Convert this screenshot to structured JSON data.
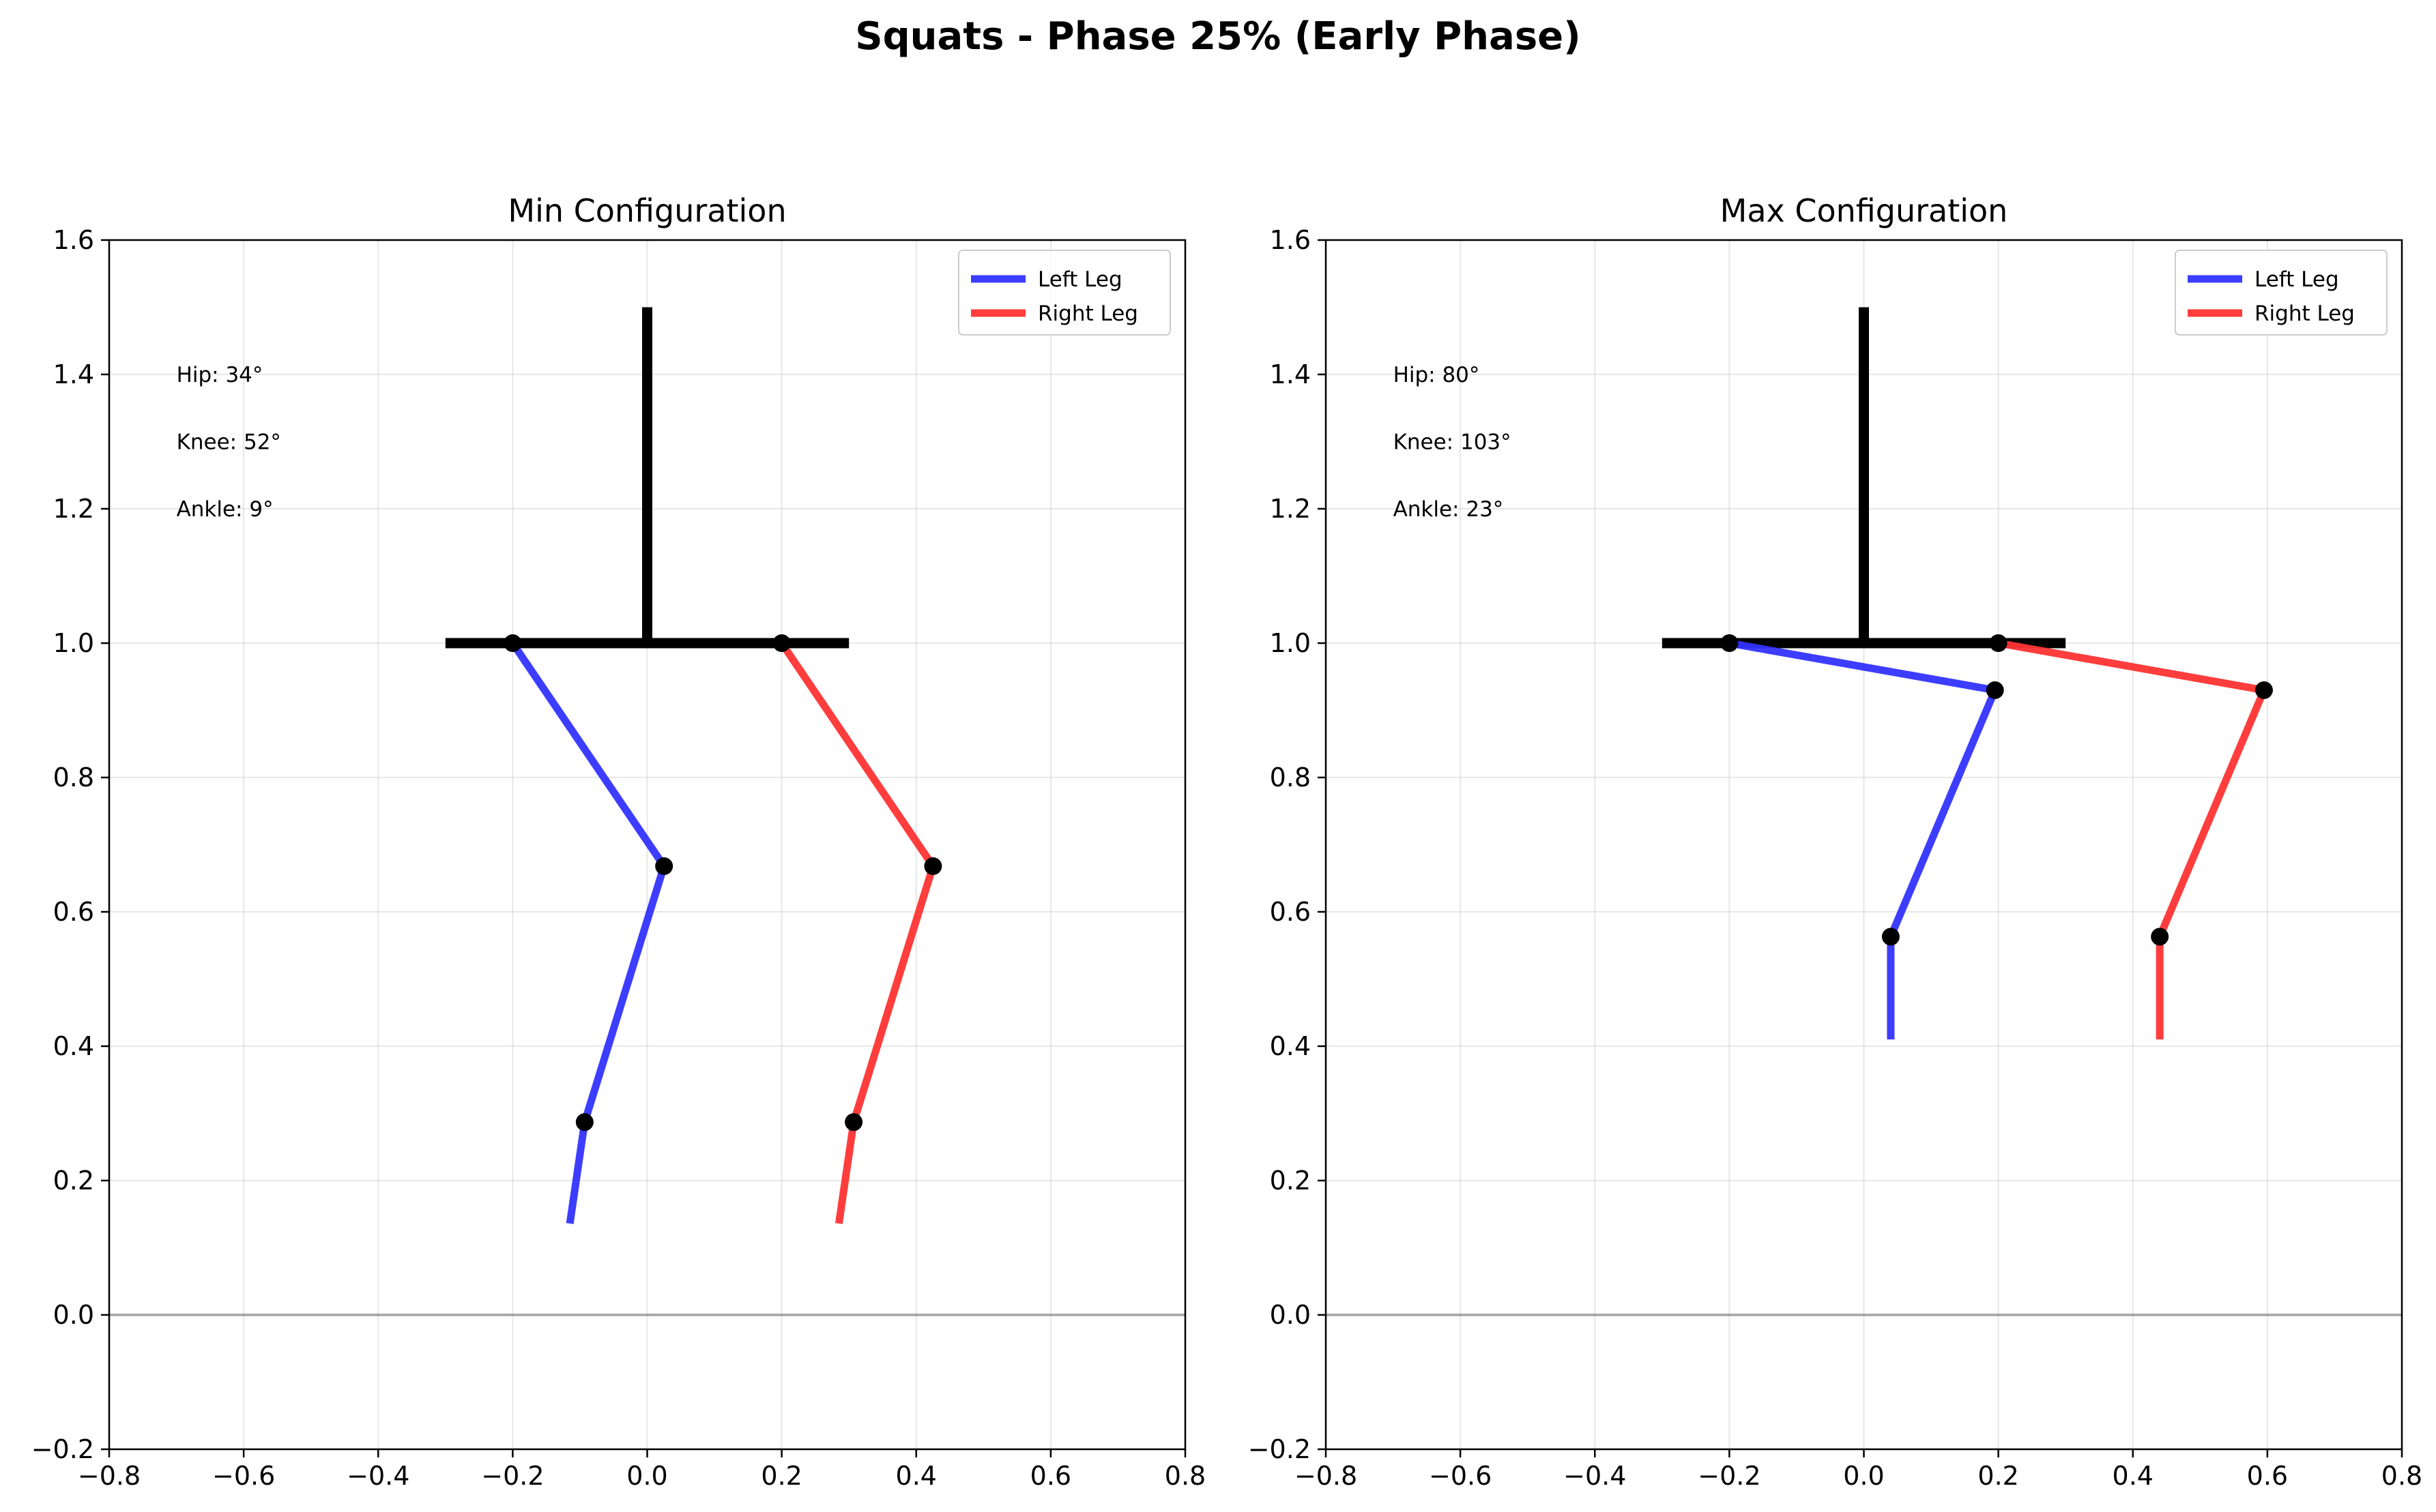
{
  "figure": {
    "title": "Squats - Phase 25% (Early Phase)"
  },
  "chart_data": [
    {
      "type": "line",
      "title": "Min Configuration",
      "xlabel": "",
      "ylabel": "",
      "xlim": [
        -0.8,
        0.8
      ],
      "ylim": [
        -0.2,
        1.6
      ],
      "xticks": [
        -0.8,
        -0.6,
        -0.4,
        -0.2,
        0.0,
        0.2,
        0.4,
        0.6,
        0.8
      ],
      "yticks": [
        -0.2,
        0.0,
        0.2,
        0.4,
        0.6,
        0.8,
        1.0,
        1.2,
        1.4,
        1.6
      ],
      "xtick_labels": [
        "−0.8",
        "−0.6",
        "−0.4",
        "−0.2",
        "0.0",
        "0.2",
        "0.4",
        "0.6",
        "0.8"
      ],
      "ytick_labels": [
        "−0.2",
        "0.0",
        "0.2",
        "0.4",
        "0.6",
        "0.8",
        "1.0",
        "1.2",
        "1.4",
        "1.6"
      ],
      "grid": true,
      "legend_position": "top-right",
      "ground_y": 0.0,
      "torso": {
        "x": [
          0.0,
          0.0
        ],
        "y": [
          1.0,
          1.5
        ],
        "color": "#000000"
      },
      "pelvis": {
        "x": [
          -0.3,
          0.3
        ],
        "y": [
          1.0,
          1.0
        ],
        "color": "#000000"
      },
      "series": [
        {
          "name": "Left Leg",
          "color": "#3333ff",
          "x": [
            -0.2,
            0.025,
            -0.093,
            -0.115
          ],
          "y": [
            1.0,
            0.668,
            0.287,
            0.136
          ],
          "joints": [
            0,
            1,
            2
          ]
        },
        {
          "name": "Right Leg",
          "color": "#ff3333",
          "x": [
            0.2,
            0.425,
            0.307,
            0.285
          ],
          "y": [
            1.0,
            0.668,
            0.287,
            0.136
          ],
          "joints": [
            0,
            1,
            2
          ]
        }
      ],
      "annotations": [
        {
          "text": "Hip: 34°",
          "x": -0.7,
          "y": 1.4
        },
        {
          "text": "Knee: 52°",
          "x": -0.7,
          "y": 1.3
        },
        {
          "text": "Ankle: 9°",
          "x": -0.7,
          "y": 1.2
        }
      ]
    },
    {
      "type": "line",
      "title": "Max Configuration",
      "xlabel": "",
      "ylabel": "",
      "xlim": [
        -0.8,
        0.8
      ],
      "ylim": [
        -0.2,
        1.6
      ],
      "xticks": [
        -0.8,
        -0.6,
        -0.4,
        -0.2,
        0.0,
        0.2,
        0.4,
        0.6,
        0.8
      ],
      "yticks": [
        -0.2,
        0.0,
        0.2,
        0.4,
        0.6,
        0.8,
        1.0,
        1.2,
        1.4,
        1.6
      ],
      "xtick_labels": [
        "−0.8",
        "−0.6",
        "−0.4",
        "−0.2",
        "0.0",
        "0.2",
        "0.4",
        "0.6",
        "0.8"
      ],
      "ytick_labels": [
        "−0.2",
        "0.0",
        "0.2",
        "0.4",
        "0.6",
        "0.8",
        "1.0",
        "1.2",
        "1.4",
        "1.6"
      ],
      "grid": true,
      "legend_position": "top-right",
      "ground_y": 0.0,
      "torso": {
        "x": [
          0.0,
          0.0
        ],
        "y": [
          1.0,
          1.5
        ],
        "color": "#000000"
      },
      "pelvis": {
        "x": [
          -0.3,
          0.3
        ],
        "y": [
          1.0,
          1.0
        ],
        "color": "#000000"
      },
      "series": [
        {
          "name": "Left Leg",
          "color": "#3333ff",
          "x": [
            -0.2,
            0.195,
            0.04,
            0.04
          ],
          "y": [
            1.0,
            0.93,
            0.563,
            0.41
          ],
          "joints": [
            0,
            1,
            2
          ]
        },
        {
          "name": "Right Leg",
          "color": "#ff3333",
          "x": [
            0.2,
            0.595,
            0.44,
            0.44
          ],
          "y": [
            1.0,
            0.93,
            0.563,
            0.41
          ],
          "joints": [
            0,
            1,
            2
          ]
        }
      ],
      "annotations": [
        {
          "text": "Hip: 80°",
          "x": -0.7,
          "y": 1.4
        },
        {
          "text": "Knee: 103°",
          "x": -0.7,
          "y": 1.3
        },
        {
          "text": "Ankle: 23°",
          "x": -0.7,
          "y": 1.2
        }
      ]
    }
  ]
}
